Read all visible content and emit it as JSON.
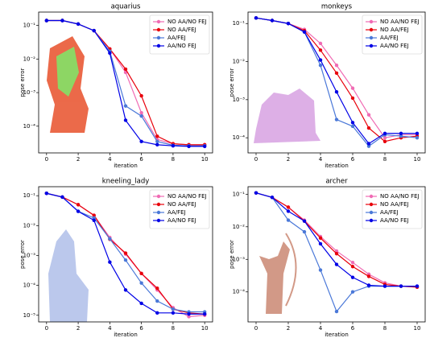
{
  "chart_data": [
    {
      "type": "line",
      "title": "aquarius",
      "xlabel": "iteration",
      "ylabel": "pose error",
      "log_y": true,
      "legend": "upper right",
      "x": [
        0,
        1,
        2,
        3,
        4,
        5,
        6,
        7,
        8,
        9,
        10
      ],
      "xlim": [
        -0.5,
        10.5
      ],
      "xticks": [
        0,
        2,
        4,
        6,
        8,
        10
      ],
      "ylim": [
        1.6e-05,
        0.25
      ],
      "yticks": [
        {
          "value": 0.1,
          "label": "10⁻¹"
        },
        {
          "value": 0.01,
          "label": "10⁻²"
        },
        {
          "value": 0.001,
          "label": "10⁻³"
        },
        {
          "value": 0.0001,
          "label": "10⁻⁴"
        }
      ],
      "series": [
        {
          "name": "NO AA/NO FEJ",
          "color": "#f06bb4",
          "values": [
            0.14,
            0.14,
            0.11,
            0.07,
            0.02,
            0.004,
            0.00025,
            4e-05,
            3e-05,
            2.8e-05,
            2.8e-05
          ]
        },
        {
          "name": "NO AA/FEJ",
          "color": "#e8000b",
          "values": [
            0.14,
            0.14,
            0.11,
            0.07,
            0.02,
            0.005,
            0.0008,
            5e-05,
            3e-05,
            2.8e-05,
            2.8e-05
          ]
        },
        {
          "name": "AA/FEJ",
          "color": "#4a78d8",
          "values": [
            0.14,
            0.14,
            0.11,
            0.07,
            0.017,
            0.0004,
            0.0002,
            3.5e-05,
            2.7e-05,
            2.6e-05,
            2.6e-05
          ]
        },
        {
          "name": "AA/NO FEJ",
          "color": "#0000e6",
          "values": [
            0.14,
            0.14,
            0.11,
            0.07,
            0.015,
            0.00015,
            3.5e-05,
            2.8e-05,
            2.6e-05,
            2.5e-05,
            2.5e-05
          ]
        }
      ]
    },
    {
      "type": "line",
      "title": "monkeys",
      "xlabel": "iteration",
      "ylabel": "pose error",
      "log_y": true,
      "legend": "upper right",
      "x": [
        0,
        1,
        2,
        3,
        4,
        5,
        6,
        7,
        8,
        9,
        10
      ],
      "xlim": [
        -0.5,
        10.5
      ],
      "xticks": [
        0,
        2,
        4,
        6,
        8,
        10
      ],
      "ylim": [
        4e-05,
        0.2
      ],
      "yticks": [
        {
          "value": 0.1,
          "label": "10⁻¹"
        },
        {
          "value": 0.01,
          "label": "10⁻²"
        },
        {
          "value": 0.001,
          "label": "10⁻³"
        },
        {
          "value": 0.0001,
          "label": "10⁻⁴"
        }
      ],
      "series": [
        {
          "name": "NO AA/NO FEJ",
          "color": "#f06bb4",
          "values": [
            0.14,
            0.12,
            0.1,
            0.07,
            0.03,
            0.008,
            0.002,
            0.0004,
            0.0001,
            0.00012,
            0.00012
          ]
        },
        {
          "name": "NO AA/FEJ",
          "color": "#e8000b",
          "values": [
            0.14,
            0.12,
            0.1,
            0.065,
            0.02,
            0.005,
            0.0011,
            0.00018,
            8e-05,
            0.0001,
            0.00011
          ]
        },
        {
          "name": "AA/FEJ",
          "color": "#4a78d8",
          "values": [
            0.14,
            0.12,
            0.1,
            0.06,
            0.008,
            0.0003,
            0.0002,
            6e-05,
            0.00012,
            0.00011,
            0.0001
          ]
        },
        {
          "name": "AA/NO FEJ",
          "color": "#0000e6",
          "values": [
            0.14,
            0.12,
            0.1,
            0.06,
            0.011,
            0.0016,
            0.00025,
            7e-05,
            0.00013,
            0.00013,
            0.00013
          ]
        }
      ]
    },
    {
      "type": "line",
      "title": "kneeling_lady",
      "xlabel": "iteration",
      "ylabel": "pose error",
      "log_y": true,
      "legend": "upper right",
      "x": [
        0,
        1,
        2,
        3,
        4,
        5,
        6,
        7,
        8,
        9,
        10
      ],
      "xlim": [
        -0.5,
        10.5
      ],
      "xticks": [
        0,
        2,
        4,
        6,
        8,
        10
      ],
      "ylim": [
        6e-06,
        0.2
      ],
      "yticks": [
        {
          "value": 0.1,
          "label": "10⁻¹"
        },
        {
          "value": 0.01,
          "label": "10⁻²"
        },
        {
          "value": 0.001,
          "label": "10⁻³"
        },
        {
          "value": 0.0001,
          "label": "10⁻⁴"
        },
        {
          "value": 1e-05,
          "label": "10⁻⁵"
        }
      ],
      "series": [
        {
          "name": "NO AA/NO FEJ",
          "color": "#f06bb4",
          "values": [
            0.12,
            0.09,
            0.05,
            0.022,
            0.004,
            0.0011,
            0.00025,
            7e-05,
            1.8e-05,
            9e-06,
            1e-05
          ]
        },
        {
          "name": "NO AA/FEJ",
          "color": "#e8000b",
          "values": [
            0.12,
            0.09,
            0.05,
            0.022,
            0.0035,
            0.0012,
            0.00025,
            8e-05,
            1.6e-05,
            1.2e-05,
            1.1e-05
          ]
        },
        {
          "name": "AA/FEJ",
          "color": "#4a78d8",
          "values": [
            0.12,
            0.09,
            0.03,
            0.018,
            0.0036,
            0.0007,
            0.00012,
            3e-05,
            1.6e-05,
            1.3e-05,
            1.3e-05
          ]
        },
        {
          "name": "AA/NO FEJ",
          "color": "#0000e6",
          "values": [
            0.12,
            0.09,
            0.03,
            0.015,
            0.0006,
            7e-05,
            2.5e-05,
            1.2e-05,
            1.2e-05,
            1.1e-05,
            1.1e-05
          ]
        }
      ]
    },
    {
      "type": "line",
      "title": "archer",
      "xlabel": "iteration",
      "ylabel": "pose error",
      "log_y": true,
      "legend": "upper right",
      "x": [
        0,
        1,
        2,
        3,
        4,
        5,
        6,
        7,
        8,
        9,
        10
      ],
      "xlim": [
        -0.5,
        10.5
      ],
      "xticks": [
        0,
        2,
        4,
        6,
        8,
        10
      ],
      "ylim": [
        1.2e-05,
        0.17
      ],
      "yticks": [
        {
          "value": 0.1,
          "label": "10⁻¹"
        },
        {
          "value": 0.01,
          "label": "10⁻²"
        },
        {
          "value": 0.001,
          "label": "10⁻³"
        },
        {
          "value": 0.0001,
          "label": "10⁻⁴"
        }
      ],
      "series": [
        {
          "name": "NO AA/NO FEJ",
          "color": "#f06bb4",
          "values": [
            0.11,
            0.08,
            0.04,
            0.016,
            0.005,
            0.0018,
            0.0008,
            0.00035,
            0.00019,
            0.00015,
            0.00014
          ]
        },
        {
          "name": "NO AA/FEJ",
          "color": "#e8000b",
          "values": [
            0.11,
            0.08,
            0.04,
            0.015,
            0.0045,
            0.0015,
            0.0006,
            0.0003,
            0.00017,
            0.00015,
            0.00014
          ]
        },
        {
          "name": "AA/FEJ",
          "color": "#4a78d8",
          "values": [
            0.11,
            0.08,
            0.016,
            0.007,
            0.00047,
            2.5e-05,
            0.0001,
            0.00015,
            0.00015,
            0.00015,
            0.00015
          ]
        },
        {
          "name": "AA/NO FEJ",
          "color": "#0000e6",
          "values": [
            0.11,
            0.08,
            0.03,
            0.015,
            0.003,
            0.0007,
            0.00028,
            0.00016,
            0.00015,
            0.00015,
            0.00015
          ]
        }
      ]
    }
  ]
}
